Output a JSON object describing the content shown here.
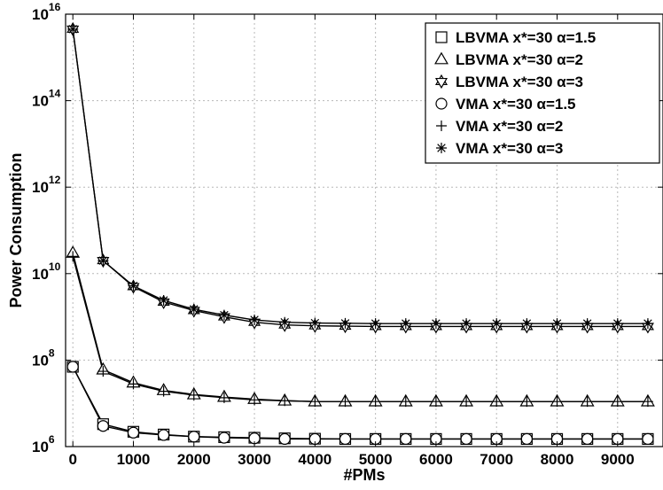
{
  "chart_data": {
    "type": "line",
    "xlabel": "#PMs",
    "ylabel": "Power Consumption",
    "xlim": [
      -120,
      9750
    ],
    "ylim": [
      1000000,
      10000000000000000
    ],
    "yscale": "log",
    "grid": true,
    "legend_position": "top-right",
    "x_ticks": [
      0,
      1000,
      2000,
      3000,
      4000,
      5000,
      6000,
      7000,
      8000,
      9000
    ],
    "x_tick_labels": [
      "0",
      "1000",
      "2000",
      "3000",
      "4000",
      "5000",
      "6000",
      "7000",
      "8000",
      "9000"
    ],
    "y_ticks": [
      1000000,
      100000000,
      10000000000,
      1000000000000,
      100000000000000,
      10000000000000000
    ],
    "y_tick_labels": [
      {
        "base": "10",
        "exp": "6"
      },
      {
        "base": "10",
        "exp": "8"
      },
      {
        "base": "10",
        "exp": "10"
      },
      {
        "base": "10",
        "exp": "12"
      },
      {
        "base": "10",
        "exp": "14"
      },
      {
        "base": "10",
        "exp": "16"
      }
    ],
    "series": [
      {
        "name": "LBVMA x*=30 α=1.5",
        "marker": "square",
        "x": [
          0,
          500,
          1000,
          1500,
          2000,
          2500,
          3000,
          3500,
          4000,
          4500,
          5000,
          5500,
          6000,
          6500,
          7000,
          7500,
          8000,
          8500,
          9000,
          9500
        ],
        "y": [
          70000000,
          3300000,
          2200000,
          1900000,
          1700000,
          1650000,
          1600000,
          1550000,
          1520000,
          1500000,
          1500000,
          1500000,
          1500000,
          1500000,
          1500000,
          1500000,
          1500000,
          1500000,
          1500000,
          1500000
        ]
      },
      {
        "name": "LBVMA x*=30 α=2",
        "marker": "triangle",
        "x": [
          0,
          500,
          1000,
          1500,
          2000,
          2500,
          3000,
          3500,
          4000,
          4500,
          5000,
          5500,
          6000,
          6500,
          7000,
          7500,
          8000,
          8500,
          9000,
          9500
        ],
        "y": [
          30000000000,
          60000000,
          30000000,
          20000000,
          16000000,
          14000000,
          12500000,
          11500000,
          11000000,
          11000000,
          11000000,
          11000000,
          11000000,
          11000000,
          11000000,
          11000000,
          11000000,
          11000000,
          11000000,
          11000000
        ]
      },
      {
        "name": "LBVMA x*=30 α=3",
        "marker": "hexagram",
        "x": [
          0,
          500,
          1000,
          1500,
          2000,
          2500,
          3000,
          3500,
          4000,
          4500,
          5000,
          5500,
          6000,
          6500,
          7000,
          7500,
          8000,
          8500,
          9000,
          9500
        ],
        "y": [
          4500000000000000,
          20000000000,
          5000000000,
          2200000000,
          1400000000,
          1000000000,
          750000000,
          650000000,
          620000000,
          610000000,
          600000000,
          600000000,
          600000000,
          600000000,
          600000000,
          600000000,
          600000000,
          600000000,
          600000000,
          600000000
        ]
      },
      {
        "name": "VMA x*=30 α=1.5",
        "marker": "circle",
        "x": [
          0,
          500,
          1000,
          1500,
          2000,
          2500,
          3000,
          3500,
          4000,
          4500,
          5000,
          5500,
          6000,
          6500,
          7000,
          7500,
          8000,
          8500,
          9000,
          9500
        ],
        "y": [
          70000000,
          3000000,
          2100000,
          1850000,
          1700000,
          1600000,
          1550000,
          1500000,
          1500000,
          1500000,
          1500000,
          1500000,
          1500000,
          1500000,
          1500000,
          1500000,
          1500000,
          1500000,
          1500000,
          1500000
        ]
      },
      {
        "name": "VMA x*=30 α=2",
        "marker": "plus",
        "x": [
          0,
          500,
          1000,
          1500,
          2000,
          2500,
          3000,
          3500,
          4000,
          4500,
          5000,
          5500,
          6000,
          6500,
          7000,
          7500,
          8000,
          8500,
          9000,
          9500
        ],
        "y": [
          25000000000,
          55000000,
          28000000,
          19000000,
          15500000,
          13500000,
          12000000,
          11500000,
          11000000,
          11000000,
          11000000,
          11000000,
          11000000,
          11000000,
          11000000,
          11000000,
          11000000,
          11000000,
          11000000,
          11000000
        ]
      },
      {
        "name": "VMA x*=30 α=3",
        "marker": "asterisk",
        "x": [
          0,
          500,
          1000,
          1500,
          2000,
          2500,
          3000,
          3500,
          4000,
          4500,
          5000,
          5500,
          6000,
          6500,
          7000,
          7500,
          8000,
          8500,
          9000,
          9500
        ],
        "y": [
          4500000000000000,
          20000000000,
          5200000000,
          2400000000,
          1500000000,
          1100000000,
          850000000,
          750000000,
          720000000,
          710000000,
          700000000,
          700000000,
          700000000,
          700000000,
          700000000,
          700000000,
          700000000,
          700000000,
          700000000,
          700000000
        ]
      }
    ]
  }
}
